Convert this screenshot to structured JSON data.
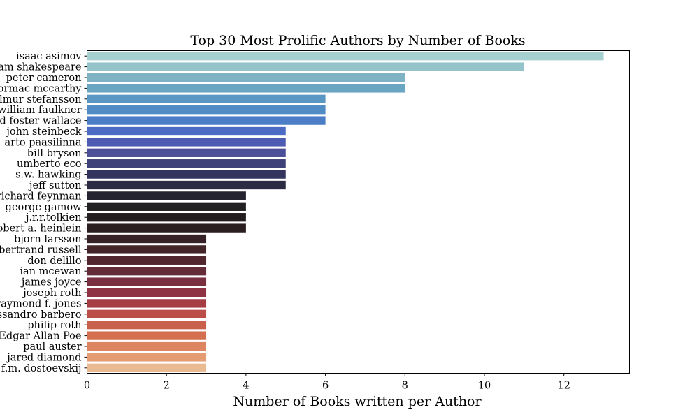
{
  "chart_data": {
    "type": "bar",
    "orientation": "horizontal",
    "title": "Top 30 Most Prolific Authors by Number of Books",
    "xlabel": "Number of Books written per Author",
    "ylabel": "",
    "xlim": [
      0,
      13.65
    ],
    "xticks": [
      0,
      2,
      4,
      6,
      8,
      10,
      12
    ],
    "grid": false,
    "legend": "none",
    "categories": [
      "isaac asimov",
      "william shakespeare",
      "peter cameron",
      "cormac mccarthy",
      "vilhjalmur stefansson",
      "william faulkner",
      "david foster wallace",
      "john steinbeck",
      "arto paasilinna",
      "bill bryson",
      "umberto eco",
      "s.w. hawking",
      "jeff sutton",
      "richard feynman",
      "george gamow",
      "j.r.r.tolkien",
      "robert a. heinlein",
      "bjorn larsson",
      "bertrand russell",
      "don delillo",
      "ian mcewan",
      "james joyce",
      "joseph roth",
      "raymond f. jones",
      "alessandro barbero",
      "philip roth",
      "Edgar Allan Poe",
      "paul auster",
      "jared diamond",
      "f.m. dostoevskij"
    ],
    "values": [
      13,
      11,
      8,
      8,
      6,
      6,
      6,
      5,
      5,
      5,
      5,
      5,
      5,
      4,
      4,
      4,
      4,
      3,
      3,
      3,
      3,
      3,
      3,
      3,
      3,
      3,
      3,
      3,
      3,
      3
    ],
    "colors": [
      "#a6d0d0",
      "#94c3ca",
      "#7fb3c4",
      "#6aa5c1",
      "#5a97c2",
      "#528cc4",
      "#4c7ec7",
      "#4c6bc4",
      "#4e5bb2",
      "#4a4f98",
      "#3e4278",
      "#33355e",
      "#2b2b44",
      "#262330",
      "#222022",
      "#231d1f",
      "#2b1e21",
      "#362127",
      "#432429",
      "#51262f",
      "#642b38",
      "#7a2f40",
      "#8f3344",
      "#a63d45",
      "#bb4e49",
      "#c9604c",
      "#d47050",
      "#dd8560",
      "#e49c72",
      "#eabb92"
    ]
  }
}
